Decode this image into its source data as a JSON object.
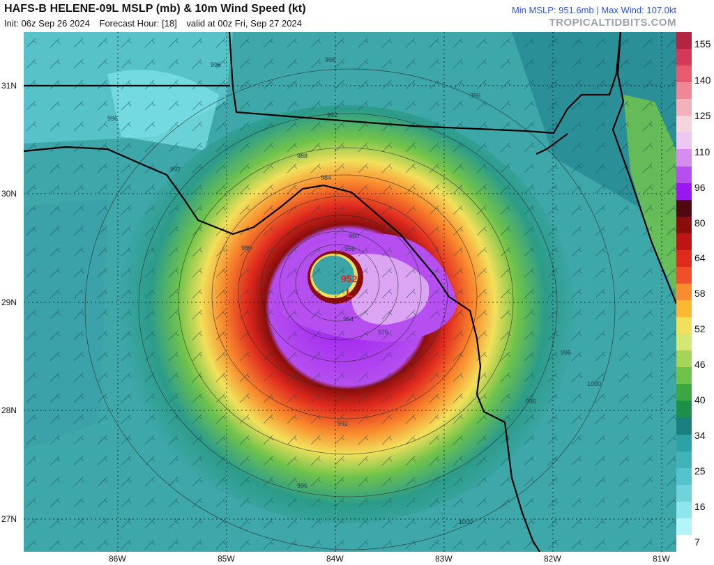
{
  "header": {
    "title": "HAFS-B HELENE-09L MSLP (mb) & 10m Wind Speed (kt)",
    "init": "Init: 06z Sep 26 2024",
    "forecast_hour": "Forecast Hour: [18]",
    "valid": "valid at 00z Fri, Sep 27 2024",
    "stats": "Min MSLP: 951.6mb | Max Wind: 107.0kt",
    "credit": "TROPICALTIDBITS.COM"
  },
  "map": {
    "lat_labels": [
      "31N",
      "30N",
      "29N",
      "28N",
      "27N"
    ],
    "lon_labels": [
      "86W",
      "85W",
      "84W",
      "83W",
      "82W",
      "81W"
    ],
    "center_pressure": "952",
    "low_marker": "L",
    "isobar_labels": [
      "996",
      "996",
      "996",
      "992",
      "992",
      "988",
      "984",
      "980",
      "960",
      "956",
      "964",
      "976",
      "992",
      "996",
      "996",
      "1000",
      "1000",
      "996",
      "996"
    ]
  },
  "colorbar": {
    "ticks": [
      "155",
      "140",
      "125",
      "110",
      "96",
      "80",
      "64",
      "58",
      "52",
      "46",
      "40",
      "34",
      "25",
      "16",
      "7"
    ],
    "colors": [
      "#b3243f",
      "#d4395a",
      "#e85b6e",
      "#ef8795",
      "#f4b0bb",
      "#f7d4dc",
      "#eec6f4",
      "#d58ef0",
      "#b54ff0",
      "#9b17f0",
      "#4d0810",
      "#8a0d0d",
      "#c01414",
      "#e02a1e",
      "#f05028",
      "#f98c2e",
      "#fbb833",
      "#f2e05a",
      "#d4e674",
      "#a6d35a",
      "#6fc34b",
      "#3aa744",
      "#1e8f48",
      "#1b7f80",
      "#2ca2a6",
      "#3fb3b7",
      "#55c3cb",
      "#70d3dc",
      "#8ee5ee",
      "#b3f5fa",
      "#ffffff"
    ]
  }
}
